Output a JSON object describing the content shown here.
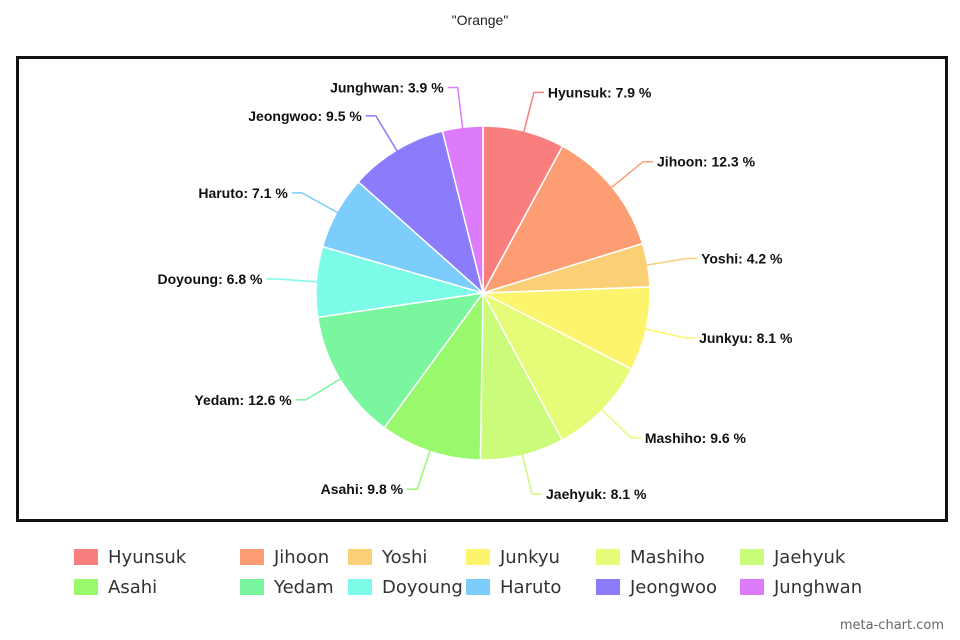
{
  "chart_data": {
    "type": "pie",
    "title": "\"Orange\"",
    "unit": "%",
    "slices": [
      {
        "name": "Hyunsuk",
        "value": 7.9,
        "color": "#f97f7f"
      },
      {
        "name": "Jihoon",
        "value": 12.3,
        "color": "#fc9d73"
      },
      {
        "name": "Yoshi",
        "value": 4.2,
        "color": "#fbcf75"
      },
      {
        "name": "Junkyu",
        "value": 8.1,
        "color": "#fcf46d"
      },
      {
        "name": "Mashiho",
        "value": 9.6,
        "color": "#e6fb77"
      },
      {
        "name": "Jaehyuk",
        "value": 8.1,
        "color": "#cbfb7b"
      },
      {
        "name": "Asahi",
        "value": 9.8,
        "color": "#98f96d"
      },
      {
        "name": "Yedam",
        "value": 12.6,
        "color": "#7af79e"
      },
      {
        "name": "Doyoung",
        "value": 6.8,
        "color": "#7cfbe9"
      },
      {
        "name": "Haruto",
        "value": 7.1,
        "color": "#7ccdfb"
      },
      {
        "name": "Jeongwoo",
        "value": 9.5,
        "color": "#8a7cfb"
      },
      {
        "name": "Junghwan",
        "value": 3.9,
        "color": "#dc7cfb"
      }
    ],
    "legend_position": "bottom"
  },
  "watermark": "meta-chart.com"
}
